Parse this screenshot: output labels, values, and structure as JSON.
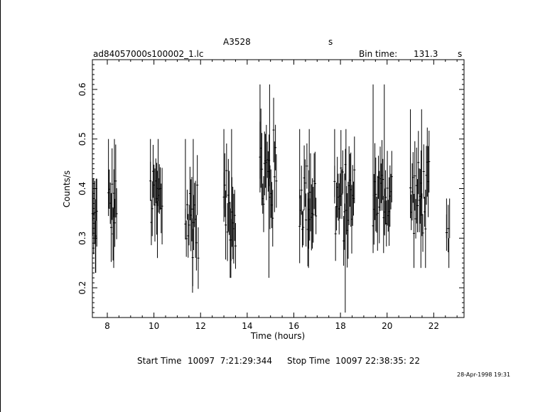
{
  "header": {
    "target": "A3528",
    "target_suffix": "s",
    "filename": "ad84057000s100002_1.lc",
    "bin_label": "Bin time:",
    "bin_value": "131.3",
    "bin_unit": "s"
  },
  "footer": {
    "start_label": "Start Time",
    "start_value": "10097  7:21:29:344",
    "stop_label": "Stop Time",
    "stop_value": "10097 22:38:35: 22",
    "timestamp": "28-Apr-1998 19:31"
  },
  "chart_data": {
    "type": "scatter",
    "title": "A3528",
    "xlabel": "Time (hours)",
    "ylabel": "Counts/s",
    "xlim": [
      7.36,
      23.3
    ],
    "ylim": [
      0.14,
      0.66
    ],
    "x_ticks": [
      8,
      10,
      12,
      14,
      16,
      18,
      20,
      22
    ],
    "y_ticks": [
      0.2,
      0.3,
      0.4,
      0.5,
      0.6
    ],
    "grid": false,
    "error_bars": true,
    "segments": [
      {
        "x_start": 7.37,
        "x_end": 7.55,
        "rate": 0.335,
        "low": 0.23,
        "high": 0.42
      },
      {
        "x_start": 8.05,
        "x_end": 8.4,
        "rate": 0.36,
        "low": 0.24,
        "high": 0.5
      },
      {
        "x_start": 9.85,
        "x_end": 10.35,
        "rate": 0.375,
        "low": 0.26,
        "high": 0.5
      },
      {
        "x_start": 11.35,
        "x_end": 11.9,
        "rate": 0.34,
        "low": 0.19,
        "high": 0.5
      },
      {
        "x_start": 13.0,
        "x_end": 13.5,
        "rate": 0.36,
        "low": 0.22,
        "high": 0.52
      },
      {
        "x_start": 14.55,
        "x_end": 15.25,
        "rate": 0.42,
        "low": 0.22,
        "high": 0.61
      },
      {
        "x_start": 16.25,
        "x_end": 16.95,
        "rate": 0.38,
        "low": 0.24,
        "high": 0.52
      },
      {
        "x_start": 17.75,
        "x_end": 18.6,
        "rate": 0.37,
        "low": 0.15,
        "high": 0.52
      },
      {
        "x_start": 19.4,
        "x_end": 20.2,
        "rate": 0.385,
        "low": 0.27,
        "high": 0.61
      },
      {
        "x_start": 21.0,
        "x_end": 21.8,
        "rate": 0.38,
        "low": 0.24,
        "high": 0.56
      },
      {
        "x_start": 22.55,
        "x_end": 22.62,
        "rate": 0.3,
        "low": 0.24,
        "high": 0.38
      }
    ]
  }
}
